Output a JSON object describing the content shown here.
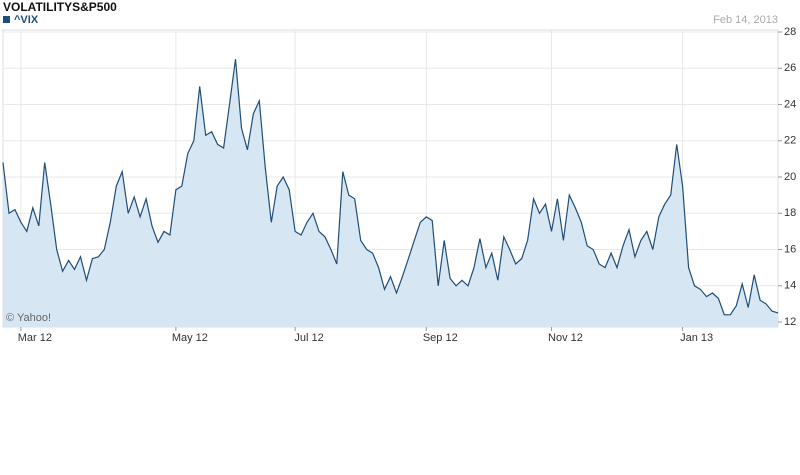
{
  "chart_data": {
    "type": "area",
    "title": "VOLATILITYS&P500",
    "subtitle": "Feb 14, 2013",
    "annotation": "© Yahoo!",
    "categories": [
      null,
      null,
      null,
      "Mar 12",
      null,
      null,
      null,
      null,
      null,
      null,
      null,
      null,
      null,
      null,
      null,
      null,
      null,
      null,
      null,
      null,
      null,
      null,
      null,
      null,
      null,
      null,
      null,
      null,
      null,
      "May 12",
      null,
      null,
      null,
      null,
      null,
      null,
      null,
      null,
      null,
      null,
      null,
      null,
      null,
      null,
      null,
      null,
      null,
      null,
      null,
      "Jul 12",
      null,
      null,
      null,
      null,
      null,
      null,
      null,
      null,
      null,
      null,
      null,
      null,
      null,
      null,
      null,
      null,
      null,
      null,
      null,
      null,
      null,
      "Sep 12",
      null,
      null,
      null,
      null,
      null,
      null,
      null,
      null,
      null,
      null,
      null,
      null,
      null,
      null,
      null,
      null,
      null,
      null,
      null,
      null,
      "Nov 12",
      null,
      null,
      null,
      null,
      null,
      null,
      null,
      null,
      null,
      null,
      null,
      null,
      null,
      null,
      null,
      null,
      null,
      null,
      null,
      null,
      null,
      "Jan 13",
      null,
      null,
      null,
      null,
      null,
      null,
      null,
      null,
      null,
      null,
      null,
      null,
      null,
      null,
      null,
      null
    ],
    "series": [
      {
        "name": "^VIX",
        "color": "#1f4e79",
        "fill": "#d6e6f2",
        "values": [
          20.8,
          18.0,
          18.2,
          17.5,
          17.0,
          18.3,
          17.3,
          20.8,
          18.5,
          16.0,
          14.8,
          15.4,
          14.9,
          15.6,
          14.3,
          15.5,
          15.6,
          16.0,
          17.5,
          19.5,
          20.3,
          18.0,
          18.9,
          17.8,
          18.8,
          17.3,
          16.4,
          17.0,
          16.8,
          19.3,
          19.5,
          21.3,
          22.0,
          25.0,
          22.3,
          22.5,
          21.8,
          21.6,
          24.0,
          26.5,
          22.7,
          21.5,
          23.5,
          24.2,
          20.5,
          17.5,
          19.5,
          20.0,
          19.3,
          17.0,
          16.8,
          17.5,
          18.0,
          17.0,
          16.7,
          16.0,
          15.2,
          20.3,
          19.0,
          18.8,
          16.5,
          16.0,
          15.8,
          15.0,
          13.8,
          14.5,
          13.6,
          14.5,
          15.5,
          16.5,
          17.5,
          17.8,
          17.6,
          14.0,
          16.5,
          14.4,
          14.0,
          14.3,
          14.0,
          15.0,
          16.6,
          15.0,
          15.8,
          14.3,
          16.7,
          16.0,
          15.2,
          15.5,
          16.5,
          18.8,
          18.0,
          18.5,
          17.0,
          18.8,
          16.5,
          19.0,
          18.3,
          17.5,
          16.2,
          16.0,
          15.2,
          15.0,
          15.8,
          15.0,
          16.2,
          17.1,
          15.6,
          16.5,
          17.0,
          16.0,
          17.8,
          18.5,
          19.0,
          21.8,
          19.5,
          15.0,
          14.0,
          13.8,
          13.4,
          13.6,
          13.3,
          12.4,
          12.4,
          12.9,
          14.1,
          12.8,
          14.6,
          13.2,
          13.0,
          12.6,
          12.5
        ]
      }
    ],
    "ylim": [
      12,
      28
    ],
    "yticks": [
      12,
      14,
      16,
      18,
      20,
      22,
      24,
      26,
      28
    ],
    "grid": true
  }
}
